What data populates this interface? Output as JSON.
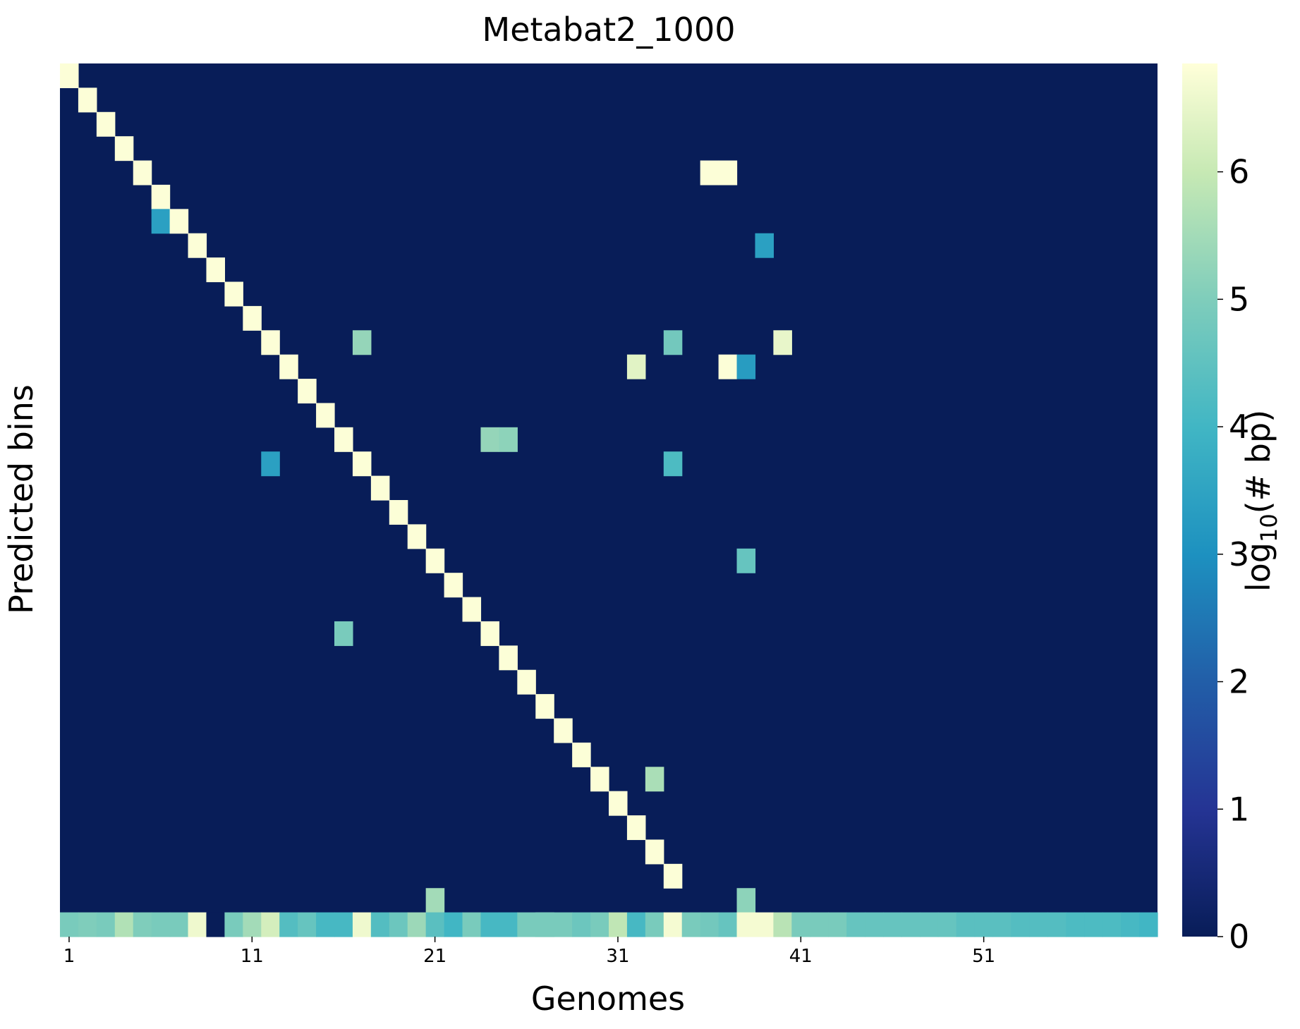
{
  "chart_data": {
    "type": "heatmap",
    "title": "Metabat2_1000",
    "xlabel": "Genomes",
    "ylabel": "Predicted bins",
    "n_cols": 60,
    "n_rows": 35,
    "x_tick_labels": [
      "1",
      "11",
      "21",
      "31",
      "41",
      "51"
    ],
    "x_tick_values": [
      1,
      11,
      21,
      31,
      41,
      51
    ],
    "colorbar": {
      "label_main": "log",
      "label_sub": "10",
      "label_rest": "(# bp)",
      "range": [
        0,
        6.85
      ],
      "ticks": [
        "0",
        "1",
        "2",
        "3",
        "4",
        "5",
        "6"
      ],
      "colormap": "YlGnBu"
    },
    "background_value": 0,
    "cells": [
      [
        1,
        1,
        6.8
      ],
      [
        2,
        2,
        6.8
      ],
      [
        3,
        3,
        6.8
      ],
      [
        4,
        4,
        6.8
      ],
      [
        5,
        5,
        6.8
      ],
      [
        36,
        5,
        6.8
      ],
      [
        37,
        5,
        6.8
      ],
      [
        6,
        6,
        6.8
      ],
      [
        6,
        7,
        3.4
      ],
      [
        7,
        7,
        6.8
      ],
      [
        8,
        8,
        6.8
      ],
      [
        39,
        8,
        3.4
      ],
      [
        9,
        9,
        6.8
      ],
      [
        10,
        10,
        6.8
      ],
      [
        11,
        11,
        6.8
      ],
      [
        12,
        12,
        6.8
      ],
      [
        17,
        12,
        5.3
      ],
      [
        34,
        12,
        4.8
      ],
      [
        40,
        12,
        6.5
      ],
      [
        13,
        13,
        6.8
      ],
      [
        32,
        13,
        6.4
      ],
      [
        37,
        13,
        6.8
      ],
      [
        38,
        13,
        3.3
      ],
      [
        14,
        14,
        6.8
      ],
      [
        15,
        15,
        6.8
      ],
      [
        16,
        16,
        6.8
      ],
      [
        24,
        16,
        5.3
      ],
      [
        25,
        16,
        5.2
      ],
      [
        12,
        17,
        3.4
      ],
      [
        17,
        17,
        6.8
      ],
      [
        34,
        17,
        4.2
      ],
      [
        18,
        18,
        6.8
      ],
      [
        19,
        19,
        6.8
      ],
      [
        20,
        20,
        6.8
      ],
      [
        21,
        21,
        6.8
      ],
      [
        38,
        21,
        4.6
      ],
      [
        22,
        22,
        6.8
      ],
      [
        23,
        23,
        6.8
      ],
      [
        16,
        24,
        4.9
      ],
      [
        24,
        24,
        6.8
      ],
      [
        25,
        25,
        6.8
      ],
      [
        26,
        26,
        6.8
      ],
      [
        27,
        27,
        6.8
      ],
      [
        28,
        28,
        6.8
      ],
      [
        29,
        29,
        6.8
      ],
      [
        30,
        30,
        6.8
      ],
      [
        33,
        30,
        5.6
      ],
      [
        31,
        31,
        6.8
      ],
      [
        32,
        32,
        6.8
      ],
      [
        33,
        33,
        6.8
      ],
      [
        34,
        34,
        6.8
      ],
      [
        21,
        35,
        5.5
      ],
      [
        38,
        35,
        5.2
      ],
      [
        27,
        36,
        5.4
      ]
    ],
    "bottom_row": [
      4.9,
      5.0,
      4.9,
      5.7,
      5.0,
      4.9,
      4.9,
      6.6,
      0,
      4.9,
      5.5,
      6.2,
      4.3,
      4.6,
      4.1,
      4.1,
      6.6,
      4.3,
      4.7,
      5.4,
      4.4,
      4.0,
      4.9,
      4.1,
      4.1,
      4.9,
      4.9,
      4.9,
      4.7,
      4.9,
      5.9,
      4.1,
      4.9,
      6.7,
      4.9,
      4.8,
      4.6,
      6.7,
      6.7,
      5.8,
      4.9,
      4.9,
      4.9,
      4.6,
      4.6,
      4.6,
      4.6,
      4.6,
      4.6,
      4.4,
      4.4,
      4.4,
      4.3,
      4.3,
      4.3,
      4.2,
      4.2,
      4.2,
      4.1,
      4.0
    ]
  }
}
